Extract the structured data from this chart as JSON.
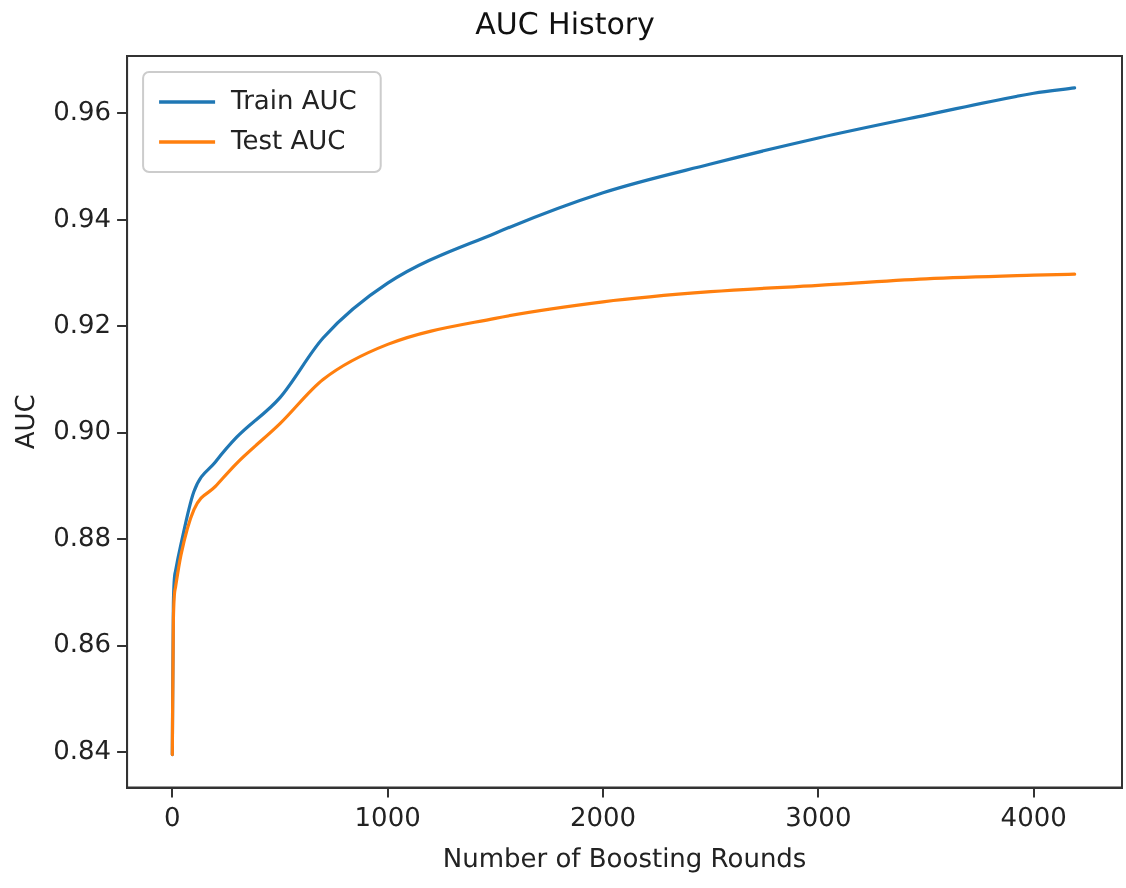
{
  "chart_data": {
    "type": "line",
    "title": "AUC History",
    "xlabel": "Number of Boosting Rounds",
    "ylabel": "AUC",
    "xlim": [
      -210,
      4410
    ],
    "xticks": [
      0,
      1000,
      2000,
      3000,
      4000
    ],
    "ylim": [
      0.8333,
      0.9708
    ],
    "yticks": [
      0.84,
      0.86,
      0.88,
      {
        "value": 0.9,
        "label": "0.90"
      },
      0.92,
      0.94,
      0.96
    ],
    "grid": false,
    "legend": "top left",
    "marker": "none",
    "line_style": "solid",
    "series": [
      {
        "name": "Train AUC",
        "color": "#1f77b4",
        "x": [
          0,
          5,
          15,
          40,
          100,
          200,
          300,
          500,
          700,
          1000,
          1500,
          2000,
          2500,
          3000,
          3500,
          4000,
          4190
        ],
        "values": [
          0.8395,
          0.868,
          0.874,
          0.879,
          0.8889,
          0.8945,
          0.8992,
          0.9066,
          0.9178,
          0.9281,
          0.9375,
          0.9451,
          0.9505,
          0.9554,
          0.9597,
          0.9638,
          0.9648
        ]
      },
      {
        "name": "Test AUC",
        "color": "#ff7f0e",
        "x": [
          0,
          5,
          15,
          40,
          100,
          200,
          300,
          500,
          700,
          1000,
          1500,
          2000,
          2500,
          3000,
          3500,
          4000,
          4190
        ],
        "values": [
          0.8395,
          0.865,
          0.871,
          0.877,
          0.8855,
          0.8899,
          0.8943,
          0.9017,
          0.91,
          0.9166,
          0.9215,
          0.9246,
          0.9265,
          0.9277,
          0.9289,
          0.9296,
          0.9298
        ]
      }
    ]
  }
}
